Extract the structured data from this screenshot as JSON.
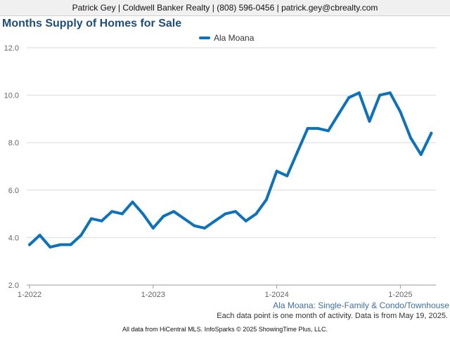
{
  "header": {
    "contact_line": "Patrick Gey | Coldwell Banker Realty | (808) 596-0456 | patrick.gey@cbrealty.com"
  },
  "colors": {
    "series": "#0e72bb",
    "grid": "#d9d9d9",
    "axis": "#999999",
    "header_bg": "#f0f0f0",
    "title": "#1f4e79"
  },
  "chart_data": {
    "type": "line",
    "title": "Months Supply of Homes for Sale",
    "xlabel": "",
    "ylabel": "",
    "ylim": [
      2.0,
      12.0
    ],
    "yticks": [
      "2.0",
      "4.0",
      "6.0",
      "8.0",
      "10.0",
      "12.0"
    ],
    "xticks": [
      "1-2022",
      "1-2023",
      "1-2024",
      "1-2025"
    ],
    "grid": true,
    "legend": "top-center",
    "x": [
      "2022-01",
      "2022-02",
      "2022-03",
      "2022-04",
      "2022-05",
      "2022-06",
      "2022-07",
      "2022-08",
      "2022-09",
      "2022-10",
      "2022-11",
      "2022-12",
      "2023-01",
      "2023-02",
      "2023-03",
      "2023-04",
      "2023-05",
      "2023-06",
      "2023-07",
      "2023-08",
      "2023-09",
      "2023-10",
      "2023-11",
      "2023-12",
      "2024-01",
      "2024-02",
      "2024-03",
      "2024-04",
      "2024-05",
      "2024-06",
      "2024-07",
      "2024-08",
      "2024-09",
      "2024-10",
      "2024-11",
      "2024-12",
      "2025-01",
      "2025-02",
      "2025-03",
      "2025-04"
    ],
    "series": [
      {
        "name": "Ala Moana",
        "values": [
          3.7,
          4.1,
          3.6,
          3.7,
          3.7,
          4.1,
          4.8,
          4.7,
          5.1,
          5.0,
          5.5,
          5.0,
          4.4,
          4.9,
          5.1,
          4.8,
          4.5,
          4.4,
          4.7,
          5.0,
          5.1,
          4.7,
          5.0,
          5.6,
          6.8,
          6.6,
          7.6,
          8.6,
          8.6,
          8.5,
          9.2,
          9.9,
          10.1,
          8.9,
          10.0,
          10.1,
          9.3,
          8.2,
          7.5,
          8.4
        ]
      }
    ]
  },
  "footer": {
    "series_note": "Ala Moana: Single-Family & Condo/Townhouse",
    "data_note": "Each data point is one month of activity. Data is from May 19, 2025.",
    "credit": "All data from HiCentral MLS. InfoSparks © 2025 ShowingTime Plus, LLC."
  }
}
